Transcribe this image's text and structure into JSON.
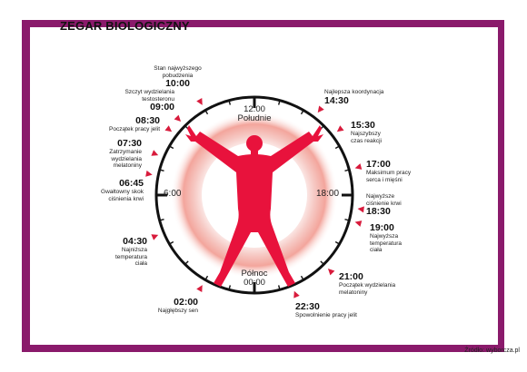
{
  "title": "ZEGAR BIOLOGICZNY",
  "source": "Źródło: wyborcza.pl",
  "colors": {
    "frame": "#8a1a6b",
    "accent": "#d81b3c",
    "figure": "#e8123c"
  },
  "clock": {
    "noon_time": "12:00",
    "noon_label": "Południe",
    "midnight_label": "Północ",
    "midnight_time": "00:00",
    "left_time": "6:00",
    "right_time": "18:00"
  },
  "events": [
    {
      "time": "10:00",
      "desc": "Stan najwyższego\npobudzenia"
    },
    {
      "time": "09:00",
      "desc": "Szczyt wydzielania\ntestosteronu"
    },
    {
      "time": "08:30",
      "desc": "Początek pracy jelit"
    },
    {
      "time": "07:30",
      "desc": "Zatrzymanie\nwydzielania\nmelatoniny"
    },
    {
      "time": "06:45",
      "desc": "Gwałtowny skok\nciśnienia krwi"
    },
    {
      "time": "04:30",
      "desc": "Najniższa\ntemperatura\nciała"
    },
    {
      "time": "02:00",
      "desc": "Najgłębszy sen"
    },
    {
      "time": "14:30",
      "desc": "Najlepsza koordynacja"
    },
    {
      "time": "15:30",
      "desc": "Najszybszy\nczas reakcji"
    },
    {
      "time": "17:00",
      "desc": "Maksimum pracy\nserca i mięśni"
    },
    {
      "time": "18:30",
      "desc": "Najwyższe\nciśnienie krwi"
    },
    {
      "time": "19:00",
      "desc": "Najwyższa\ntemperatura\nciała"
    },
    {
      "time": "21:00",
      "desc": "Początek wydzielania\nmelatoniny"
    },
    {
      "time": "22:30",
      "desc": "Spowolnienie pracy jelit"
    }
  ]
}
